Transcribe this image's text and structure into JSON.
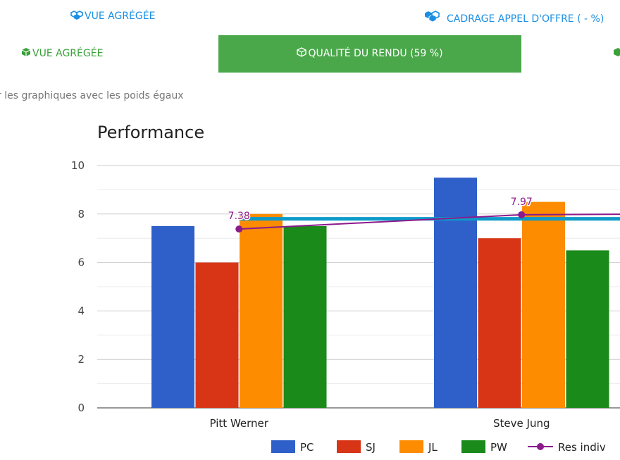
{
  "tabs_top": [
    {
      "label": "VUE AGRÉGÉE",
      "icon": "cubes-icon"
    },
    {
      "label": "CADRAGE APPEL D'OFFRE ( - %)",
      "icon": "cubes-icon"
    }
  ],
  "tabs_sub": [
    {
      "label": "VUE AGRÉGÉE",
      "icon": "cube-icon",
      "active": false
    },
    {
      "label": "QUALITÉ DU RENDU (59 %)",
      "icon": "cube-icon",
      "active": true
    }
  ],
  "hint_text": "r les graphiques avec les poids égaux",
  "colors": {
    "link_blue": "#1a8fe3",
    "tab_green": "#4aa84a",
    "PC": "#2f5fc8",
    "SJ": "#d83517",
    "JL": "#fd8c00",
    "PW": "#1a8a1a",
    "Res indiv": "#8b1a8b",
    "average_line": "#0d9ac9"
  },
  "chart_data": {
    "type": "bar",
    "title": "Performance",
    "categories": [
      "Pitt Werner",
      "Steve Jung"
    ],
    "series": [
      {
        "name": "PC",
        "values": [
          7.5,
          9.5
        ]
      },
      {
        "name": "SJ",
        "values": [
          6,
          7
        ]
      },
      {
        "name": "JL",
        "values": [
          8,
          8.5
        ]
      },
      {
        "name": "PW",
        "values": [
          7.5,
          6.5
        ]
      }
    ],
    "line_series": {
      "name": "Res indiv",
      "values": [
        7.38,
        7.97
      ],
      "labels": [
        "7.38",
        "7.97"
      ]
    },
    "average_line_value": 7.8,
    "ylim": [
      0,
      10
    ],
    "yticks": [
      "0",
      "2",
      "4",
      "6",
      "8",
      "10"
    ],
    "grid": true,
    "legend_position": "bottom"
  }
}
